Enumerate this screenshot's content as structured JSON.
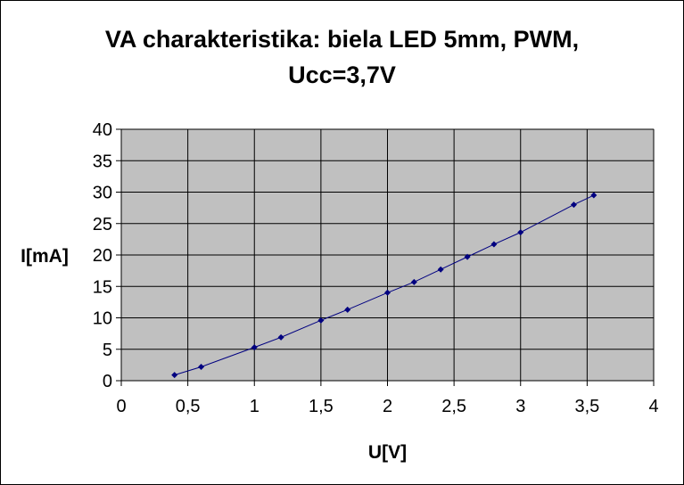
{
  "chart_data": {
    "type": "line",
    "title_line1": "VA charakteristika: biela LED 5mm, PWM,",
    "title_line2": "Ucc=3,7V",
    "xlabel": "U[V]",
    "ylabel": "I[mA]",
    "xlim": [
      0,
      4
    ],
    "ylim": [
      0,
      40
    ],
    "x_ticks": [
      "0",
      "0,5",
      "1",
      "1,5",
      "2",
      "2,5",
      "3",
      "3,5",
      "4"
    ],
    "y_ticks": [
      "0",
      "5",
      "10",
      "15",
      "20",
      "25",
      "30",
      "35",
      "40"
    ],
    "grid": true,
    "legend": "none",
    "series": [
      {
        "x": [
          0.4,
          0.6,
          1.0,
          1.2,
          1.5,
          1.7,
          2.0,
          2.2,
          2.4,
          2.6,
          2.8,
          3.0,
          3.4,
          3.55
        ],
        "y": [
          0.9,
          2.2,
          5.3,
          6.9,
          9.6,
          11.3,
          14.0,
          15.7,
          17.7,
          19.7,
          21.7,
          23.6,
          28.0,
          29.5
        ]
      }
    ],
    "colors": {
      "plot_bg": "#c0c0c0",
      "grid": "#000000",
      "line": "#000080",
      "marker": "#000080"
    }
  }
}
